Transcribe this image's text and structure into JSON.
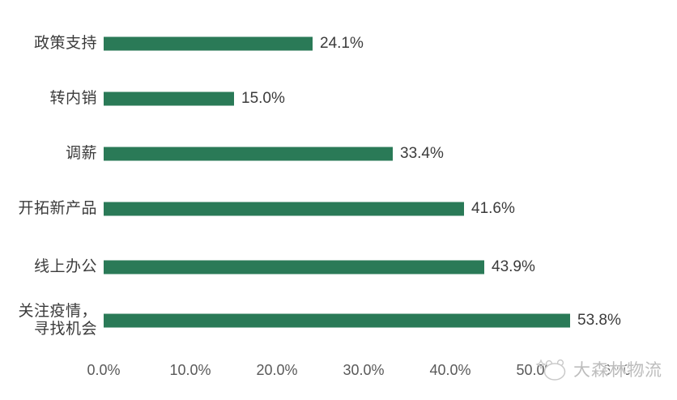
{
  "chart_data": {
    "type": "bar",
    "orientation": "horizontal",
    "title": "",
    "xlabel": "",
    "ylabel": "",
    "grid": false,
    "legend": false,
    "categories": [
      "政策支持",
      "转内销",
      "调薪",
      "开拓新产品",
      "线上办公",
      "关注疫情，\n寻找机会"
    ],
    "values": [
      24.1,
      15.0,
      33.4,
      41.6,
      43.9,
      53.8
    ],
    "value_labels": [
      "24.1%",
      "15.0%",
      "33.4%",
      "41.6%",
      "43.9%",
      "53.8%"
    ],
    "x_ticks": [
      "0.0%",
      "10.0%",
      "20.0%",
      "30.0%",
      "40.0%",
      "50.0%",
      "60.0%"
    ],
    "x_tick_values": [
      0,
      10,
      20,
      30,
      40,
      50,
      60
    ],
    "xlim": [
      0,
      60
    ]
  },
  "watermark": {
    "text": "大森林物流",
    "logo": "panda-face-icon",
    "color": "#bdbdbd"
  },
  "colors": {
    "bar": "#2A7A57",
    "category_label": "#3b3b3b",
    "value_label": "#3b3b3b",
    "axis_tick": "#595959",
    "background": "#ffffff"
  }
}
